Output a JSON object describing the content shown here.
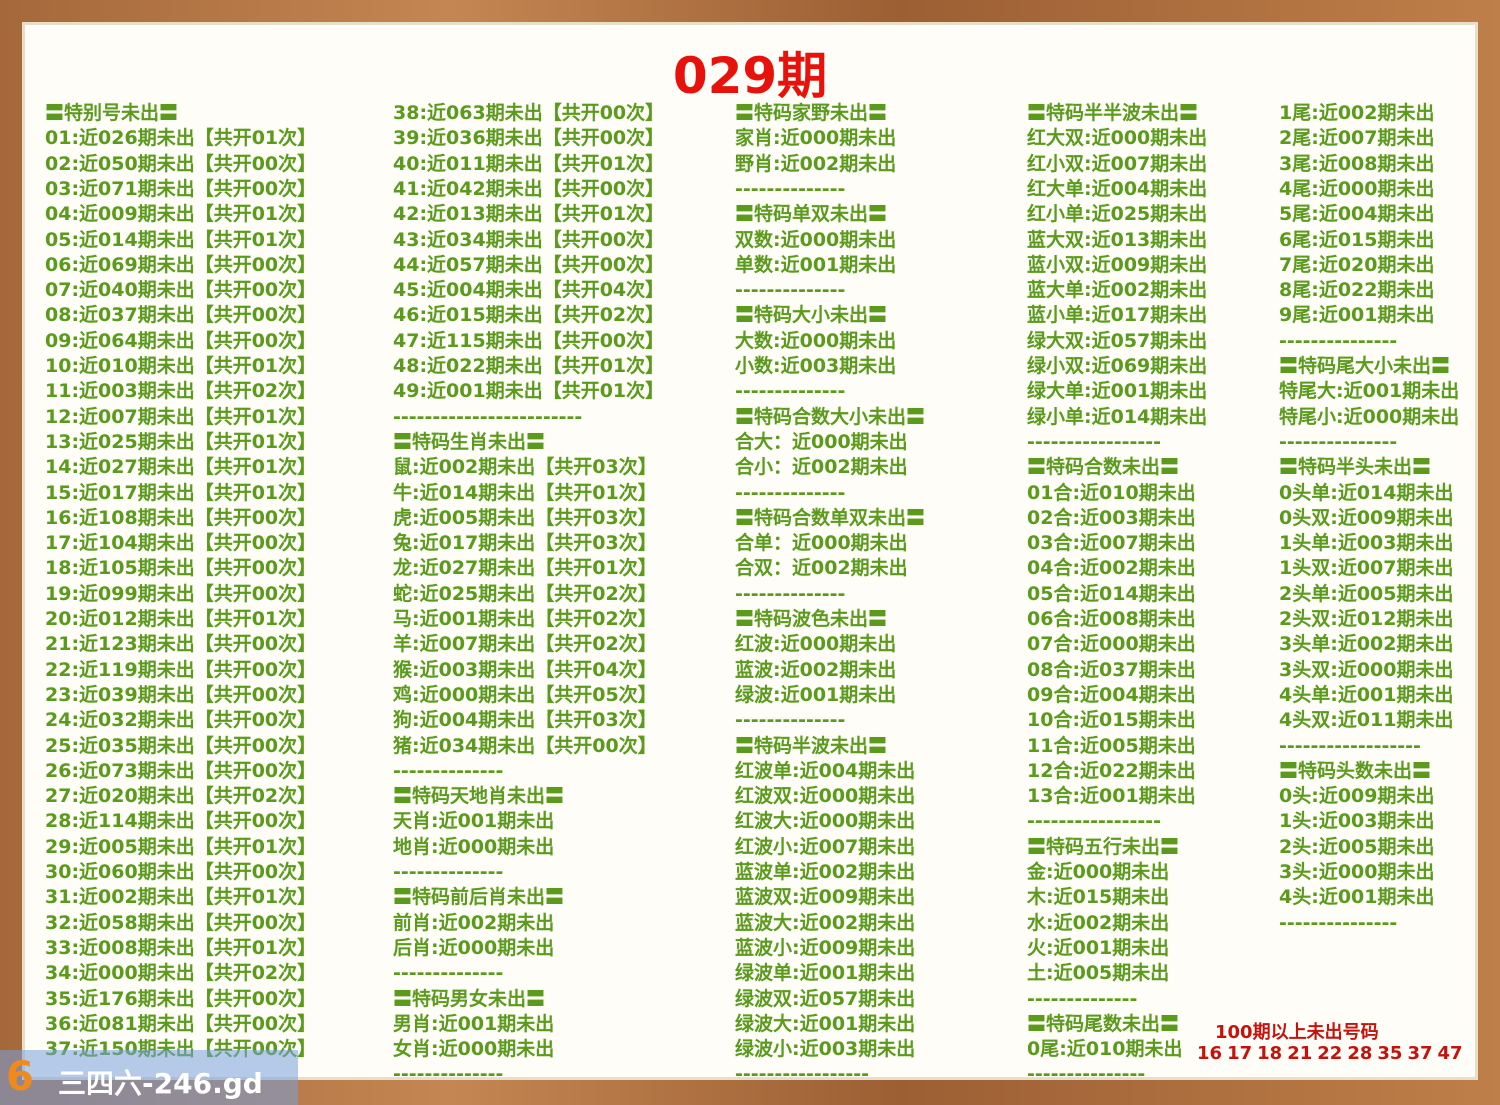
{
  "header": {
    "title": "029期"
  },
  "columns": [
    {
      "lines": [
        "〓特别号未出〓",
        "01:近026期未出【共开01次】",
        "02:近050期未出【共开00次】",
        "03:近071期未出【共开00次】",
        "04:近009期未出【共开01次】",
        "05:近014期未出【共开01次】",
        "06:近069期未出【共开00次】",
        "07:近040期未出【共开00次】",
        "08:近037期未出【共开00次】",
        "09:近064期未出【共开00次】",
        "10:近010期未出【共开01次】",
        "11:近003期未出【共开02次】",
        "12:近007期未出【共开01次】",
        "13:近025期未出【共开01次】",
        "14:近027期未出【共开01次】",
        "15:近017期未出【共开01次】",
        "16:近108期未出【共开00次】",
        "17:近104期未出【共开00次】",
        "18:近105期未出【共开00次】",
        "19:近099期未出【共开00次】",
        "20:近012期未出【共开01次】",
        "21:近123期未出【共开00次】",
        "22:近119期未出【共开00次】",
        "23:近039期未出【共开00次】",
        "24:近032期未出【共开00次】",
        "25:近035期未出【共开00次】",
        "26:近073期未出【共开00次】",
        "27:近020期未出【共开02次】",
        "28:近114期未出【共开00次】",
        "29:近005期未出【共开01次】",
        "30:近060期未出【共开00次】",
        "31:近002期未出【共开01次】",
        "32:近058期未出【共开00次】",
        "33:近008期未出【共开01次】",
        "34:近000期未出【共开02次】",
        "35:近176期未出【共开00次】",
        "36:近081期未出【共开00次】",
        "37:近150期未出【共开00次】"
      ]
    },
    {
      "lines": [
        "38:近063期未出【共开00次】",
        "39:近036期未出【共开00次】",
        "40:近011期未出【共开01次】",
        "41:近042期未出【共开00次】",
        "42:近013期未出【共开01次】",
        "43:近034期未出【共开00次】",
        "44:近057期未出【共开00次】",
        "45:近004期未出【共开04次】",
        "46:近015期未出【共开02次】",
        "47:近115期未出【共开00次】",
        "48:近022期未出【共开01次】",
        "49:近001期未出【共开01次】",
        "------------------------",
        "〓特码生肖未出〓",
        "鼠:近002期未出【共开03次】",
        "牛:近014期未出【共开01次】",
        "虎:近005期未出【共开03次】",
        "兔:近017期未出【共开03次】",
        "龙:近027期未出【共开01次】",
        "蛇:近025期未出【共开02次】",
        "马:近001期未出【共开02次】",
        "羊:近007期未出【共开02次】",
        "猴:近003期未出【共开04次】",
        "鸡:近000期未出【共开05次】",
        "狗:近004期未出【共开03次】",
        "猪:近034期未出【共开00次】",
        "--------------",
        "〓特码天地肖未出〓",
        "天肖:近001期未出",
        "地肖:近000期未出",
        "--------------",
        "〓特码前后肖未出〓",
        "前肖:近002期未出",
        "后肖:近000期未出",
        "--------------",
        "〓特码男女未出〓",
        "男肖:近001期未出",
        "女肖:近000期未出",
        "--------------"
      ]
    },
    {
      "lines": [
        "〓特码家野未出〓",
        "家肖:近000期未出",
        "野肖:近002期未出",
        "--------------",
        "〓特码单双未出〓",
        "双数:近000期未出",
        "单数:近001期未出",
        "--------------",
        "〓特码大小未出〓",
        "大数:近000期未出",
        "小数:近003期未出",
        "--------------",
        "〓特码合数大小未出〓",
        "合大：近000期未出",
        "合小：近002期未出",
        "--------------",
        "〓特码合数单双未出〓",
        "合单：近000期未出",
        "合双：近002期未出",
        "--------------",
        "〓特码波色未出〓",
        "红波:近000期未出",
        "蓝波:近002期未出",
        "绿波:近001期未出",
        "--------------",
        "〓特码半波未出〓",
        "红波单:近004期未出",
        "红波双:近000期未出",
        "红波大:近000期未出",
        "红波小:近007期未出",
        "蓝波单:近002期未出",
        "蓝波双:近009期未出",
        "蓝波大:近002期未出",
        "蓝波小:近009期未出",
        "绿波单:近001期未出",
        "绿波双:近057期未出",
        "绿波大:近001期未出",
        "绿波小:近003期未出",
        "-----------------"
      ]
    },
    {
      "lines": [
        "〓特码半半波未出〓",
        "红大双:近000期未出",
        "红小双:近007期未出",
        "红大单:近004期未出",
        "红小单:近025期未出",
        "蓝大双:近013期未出",
        "蓝小双:近009期未出",
        "蓝大单:近002期未出",
        "蓝小单:近017期未出",
        "绿大双:近057期未出",
        "绿小双:近069期未出",
        "绿大单:近001期未出",
        "绿小单:近014期未出",
        "-----------------",
        "〓特码合数未出〓",
        "01合:近010期未出",
        "02合:近003期未出",
        "03合:近007期未出",
        "04合:近002期未出",
        "05合:近014期未出",
        "06合:近008期未出",
        "07合:近000期未出",
        "08合:近037期未出",
        "09合:近004期未出",
        "10合:近015期未出",
        "11合:近005期未出",
        "12合:近022期未出",
        "13合:近001期未出",
        "-----------------",
        "〓特码五行未出〓",
        "金:近000期未出",
        "木:近015期未出",
        "水:近002期未出",
        "火:近001期未出",
        "土:近005期未出",
        "--------------",
        "〓特码尾数未出〓",
        "0尾:近010期未出",
        "---------------"
      ]
    },
    {
      "lines": [
        "1尾:近002期未出",
        "2尾:近007期未出",
        "3尾:近008期未出",
        "4尾:近000期未出",
        "5尾:近004期未出",
        "6尾:近015期未出",
        "7尾:近020期未出",
        "8尾:近022期未出",
        "9尾:近001期未出",
        "---------------",
        "〓特码尾大小未出〓",
        "特尾大:近001期未出",
        "特尾小:近000期未出",
        "---------------",
        "〓特码半头未出〓",
        "0头单:近014期未出",
        "0头双:近009期未出",
        "1头单:近003期未出",
        "1头双:近007期未出",
        "2头单:近005期未出",
        "2头双:近012期未出",
        "3头单:近002期未出",
        "3头双:近000期未出",
        "4头单:近001期未出",
        "4头双:近011期未出",
        "------------------",
        "〓特码头数未出〓",
        "0头:近009期未出",
        "1头:近003期未出",
        "2头:近005期未出",
        "3头:近000期未出",
        "4头:近001期未出",
        "---------------"
      ]
    }
  ],
  "footer": {
    "heading": "100期以上未出号码",
    "numbers": [
      "16",
      "17",
      "18",
      "21",
      "22",
      "28",
      "35",
      "37",
      "47"
    ]
  },
  "watermark": {
    "logo": "6",
    "text": "三四六-246.gd"
  }
}
